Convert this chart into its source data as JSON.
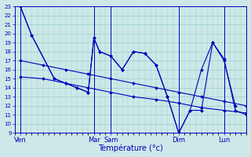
{
  "xlabel": "Température (°c)",
  "ylim": [
    9,
    23
  ],
  "yticks": [
    9,
    10,
    11,
    12,
    13,
    14,
    15,
    16,
    17,
    18,
    19,
    20,
    21,
    22,
    23
  ],
  "background_color": "#cce8e8",
  "line_color": "#0000bb",
  "grid_color": "#99cccc",
  "xtick_labels": [
    "Ven",
    "Mar",
    "Sam",
    "Dim",
    "Lun"
  ],
  "xtick_positions": [
    0,
    13,
    16,
    28,
    36
  ],
  "xlim": [
    -1,
    40
  ],
  "total_x": 40,
  "line1_x": [
    0,
    2,
    6,
    8,
    10,
    12,
    13,
    14,
    16,
    18,
    20,
    22,
    24,
    26,
    28,
    30,
    32,
    34,
    36,
    38
  ],
  "line1_y": [
    23,
    19.8,
    15.0,
    14.5,
    14.0,
    13.5,
    19.5,
    18.0,
    17.5,
    16.0,
    18.0,
    17.8,
    16.5,
    13.0,
    9.0,
    11.5,
    11.5,
    19.0,
    17.0,
    12.0
  ],
  "line2_x": [
    0,
    2,
    6,
    8,
    10,
    12,
    13,
    14,
    16,
    18,
    20,
    22,
    24,
    26,
    28,
    30,
    32,
    34,
    36,
    38,
    40
  ],
  "line2_y": [
    23,
    19.8,
    15.0,
    14.5,
    14.0,
    13.5,
    19.5,
    18.0,
    17.5,
    16.0,
    18.0,
    17.8,
    16.5,
    13.0,
    9.0,
    11.5,
    16.0,
    19.0,
    17.2,
    11.5,
    11.0
  ],
  "line3_x": [
    0,
    4,
    8,
    12,
    16,
    20,
    24,
    28,
    32,
    36,
    40
  ],
  "line3_y": [
    15.2,
    15.0,
    14.5,
    14.0,
    13.5,
    13.0,
    12.7,
    12.3,
    11.8,
    11.5,
    11.2
  ],
  "line4_x": [
    0,
    4,
    8,
    12,
    16,
    20,
    24,
    28,
    32,
    36,
    40
  ],
  "line4_y": [
    17.0,
    16.5,
    16.0,
    15.5,
    15.0,
    14.5,
    14.0,
    13.5,
    13.0,
    12.5,
    12.0
  ]
}
